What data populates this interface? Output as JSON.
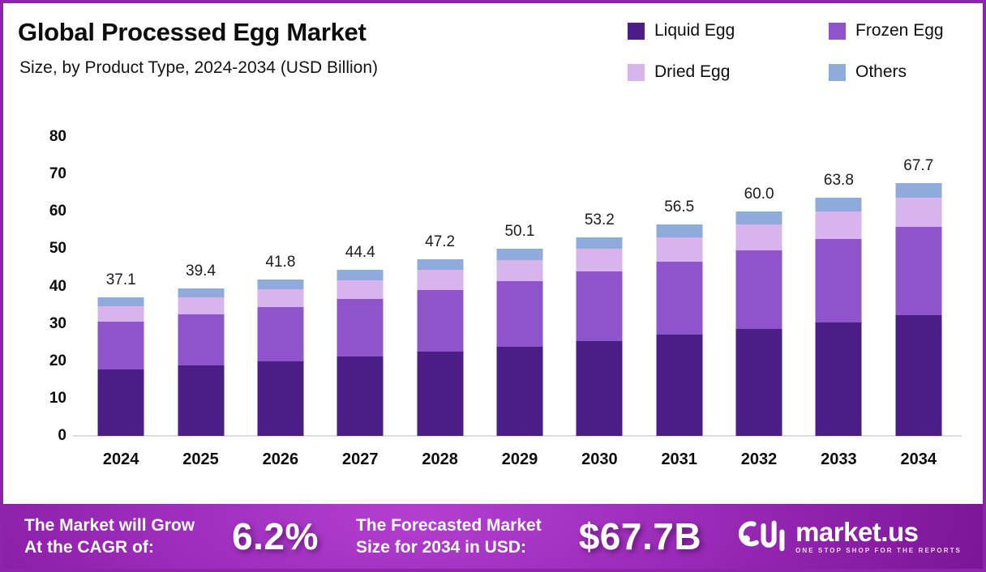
{
  "header": {
    "title": "Global Processed Egg Market",
    "subtitle": "Size, by Product Type, 2024-2034 (USD Billion)"
  },
  "legend": [
    {
      "label": "Liquid Egg",
      "color": "#4b1e87"
    },
    {
      "label": "Frozen Egg",
      "color": "#8d55c9"
    },
    {
      "label": "Dried Egg",
      "color": "#d8b4ec"
    },
    {
      "label": "Others",
      "color": "#8fabdb"
    }
  ],
  "chart_data": {
    "type": "bar",
    "stacked": true,
    "title": "Global Processed Egg Market Size, by Product Type, 2024-2034 (USD Billion)",
    "categories": [
      "2024",
      "2025",
      "2026",
      "2027",
      "2028",
      "2029",
      "2030",
      "2031",
      "2032",
      "2033",
      "2034"
    ],
    "series": [
      {
        "name": "Liquid Egg",
        "color": "#4b1e87",
        "values": [
          17.8,
          18.9,
          20.0,
          21.2,
          22.5,
          23.9,
          25.4,
          27.0,
          28.6,
          30.4,
          32.3
        ]
      },
      {
        "name": "Frozen Egg",
        "color": "#8d55c9",
        "values": [
          12.8,
          13.7,
          14.5,
          15.5,
          16.5,
          17.5,
          18.6,
          19.7,
          21.0,
          22.3,
          23.7
        ]
      },
      {
        "name": "Dried Egg",
        "color": "#d8b4ec",
        "values": [
          4.2,
          4.4,
          4.8,
          5.0,
          5.4,
          5.7,
          6.1,
          6.5,
          6.9,
          7.4,
          7.8
        ]
      },
      {
        "name": "Others",
        "color": "#8fabdb",
        "values": [
          2.3,
          2.4,
          2.5,
          2.7,
          2.8,
          3.0,
          3.1,
          3.3,
          3.5,
          3.7,
          3.9
        ]
      }
    ],
    "totals_labels": [
      "37.1",
      "39.4",
      "41.8",
      "44.4",
      "47.2",
      "50.1",
      "53.2",
      "56.5",
      "60.0",
      "63.8",
      "67.7"
    ],
    "ylim": [
      0,
      80
    ],
    "yticks": [
      0,
      10,
      20,
      30,
      40,
      50,
      60,
      70,
      80
    ],
    "grid": false,
    "legend_position": "top-right"
  },
  "banner": {
    "cagr_line1": "The Market will Grow",
    "cagr_line2": "At the CAGR of:",
    "cagr_value": "6.2%",
    "forecast_line1": "The Forecasted Market",
    "forecast_line2": "Size for 2034 in USD:",
    "forecast_value": "$67.7B",
    "brand_name": "market.us",
    "brand_tagline": "ONE STOP SHOP FOR THE REPORTS"
  },
  "colors": {
    "frame_border": "#8e24aa",
    "banner_purple": "#9a2ab8",
    "axis_line": "#dedee4"
  }
}
